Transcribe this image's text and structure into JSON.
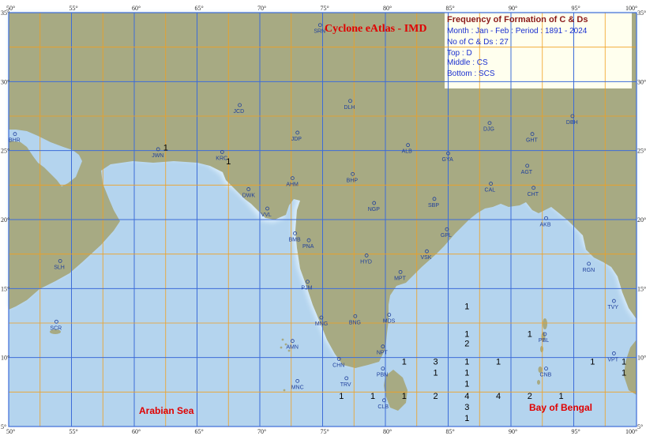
{
  "title": "Cyclone eAtlas - IMD",
  "info_box": {
    "heading": "Frequency of Formation of C & Ds",
    "lines": [
      "Month  :  Jan - Feb : Period  :  1891 - 2024",
      "No of C & Ds  :  27",
      "Top  :  D",
      "Middle  :  CS",
      "Bottom  :  SCS"
    ]
  },
  "seas": {
    "arabian": "Arabian Sea",
    "bengal": "Bay of Bengal"
  },
  "colors": {
    "land": "#a7aa83",
    "sea": "#b4d4ee",
    "coast": "#d9ecfa",
    "grid": "#3c6cd8",
    "grid_minor": "#f0a020"
  },
  "lon_ticks": [
    "50°",
    "55°",
    "60°",
    "65°",
    "70°",
    "75°",
    "80°",
    "85°",
    "90°",
    "95°",
    "100°"
  ],
  "lat_ticks": [
    "35°",
    "30°",
    "25°",
    "20°",
    "15°",
    "10°",
    "5°"
  ],
  "stations": [
    {
      "code": "SRN",
      "lon": 74.8,
      "lat": 34.1
    },
    {
      "code": "BHR",
      "lon": 50.5,
      "lat": 26.2
    },
    {
      "code": "JCD",
      "lon": 68.4,
      "lat": 28.3
    },
    {
      "code": "DLH",
      "lon": 77.2,
      "lat": 28.6
    },
    {
      "code": "JDP",
      "lon": 73.0,
      "lat": 26.3
    },
    {
      "code": "ALB",
      "lon": 81.8,
      "lat": 25.4
    },
    {
      "code": "DJG",
      "lon": 88.3,
      "lat": 27.0
    },
    {
      "code": "DBH",
      "lon": 94.9,
      "lat": 27.5
    },
    {
      "code": "GHT",
      "lon": 91.7,
      "lat": 26.2
    },
    {
      "code": "GYA",
      "lon": 85.0,
      "lat": 24.8
    },
    {
      "code": "AGT",
      "lon": 91.3,
      "lat": 23.9
    },
    {
      "code": "JWN",
      "lon": 61.9,
      "lat": 25.1
    },
    {
      "code": "KRC",
      "lon": 67.0,
      "lat": 24.9
    },
    {
      "code": "AHM",
      "lon": 72.6,
      "lat": 23.0
    },
    {
      "code": "BHP",
      "lon": 77.4,
      "lat": 23.3
    },
    {
      "code": "CAL",
      "lon": 88.4,
      "lat": 22.6
    },
    {
      "code": "DWK",
      "lon": 69.1,
      "lat": 22.2
    },
    {
      "code": "CHT",
      "lon": 91.8,
      "lat": 22.3
    },
    {
      "code": "NGP",
      "lon": 79.1,
      "lat": 21.2
    },
    {
      "code": "SBP",
      "lon": 83.9,
      "lat": 21.5
    },
    {
      "code": "VVL",
      "lon": 70.6,
      "lat": 20.8
    },
    {
      "code": "AKB",
      "lon": 92.8,
      "lat": 20.1
    },
    {
      "code": "GPL",
      "lon": 84.9,
      "lat": 19.3
    },
    {
      "code": "BMB",
      "lon": 72.8,
      "lat": 19.0
    },
    {
      "code": "PNA",
      "lon": 73.9,
      "lat": 18.5
    },
    {
      "code": "HYD",
      "lon": 78.5,
      "lat": 17.4
    },
    {
      "code": "VSK",
      "lon": 83.3,
      "lat": 17.7
    },
    {
      "code": "RGN",
      "lon": 96.2,
      "lat": 16.8
    },
    {
      "code": "SLH",
      "lon": 54.1,
      "lat": 17.0
    },
    {
      "code": "MPT",
      "lon": 81.2,
      "lat": 16.2
    },
    {
      "code": "PJM",
      "lon": 73.8,
      "lat": 15.5
    },
    {
      "code": "TVY",
      "lon": 98.2,
      "lat": 14.1
    },
    {
      "code": "MNG",
      "lon": 74.9,
      "lat": 12.9
    },
    {
      "code": "BNG",
      "lon": 77.6,
      "lat": 13.0
    },
    {
      "code": "MDS",
      "lon": 80.3,
      "lat": 13.1
    },
    {
      "code": "SCR",
      "lon": 53.8,
      "lat": 12.6
    },
    {
      "code": "AMN",
      "lon": 72.6,
      "lat": 11.2
    },
    {
      "code": "PBL",
      "lon": 92.7,
      "lat": 11.7
    },
    {
      "code": "NPT",
      "lon": 79.8,
      "lat": 10.8
    },
    {
      "code": "VPT",
      "lon": 98.2,
      "lat": 10.3
    },
    {
      "code": "CHN",
      "lon": 76.3,
      "lat": 9.9
    },
    {
      "code": "PBN",
      "lon": 79.8,
      "lat": 9.2
    },
    {
      "code": "TRV",
      "lon": 76.9,
      "lat": 8.5
    },
    {
      "code": "CNB",
      "lon": 92.8,
      "lat": 9.2
    },
    {
      "code": "MNC",
      "lon": 73.0,
      "lat": 8.3
    },
    {
      "code": "CLB",
      "lon": 79.9,
      "lat": 6.9
    }
  ],
  "counts": [
    {
      "lon": 62.5,
      "lat": 25.0,
      "value": "1"
    },
    {
      "lon": 67.5,
      "lat": 24.0,
      "value": "1"
    },
    {
      "lon": 86.5,
      "lat": 13.5,
      "value": "1"
    },
    {
      "lon": 86.5,
      "lat": 11.5,
      "value": "1"
    },
    {
      "lon": 86.5,
      "lat": 10.8,
      "value": "2"
    },
    {
      "lon": 91.5,
      "lat": 11.5,
      "value": "1"
    },
    {
      "lon": 81.5,
      "lat": 9.5,
      "value": "1"
    },
    {
      "lon": 84.0,
      "lat": 9.5,
      "value": "3"
    },
    {
      "lon": 84.0,
      "lat": 8.7,
      "value": "1"
    },
    {
      "lon": 86.5,
      "lat": 9.5,
      "value": "1"
    },
    {
      "lon": 86.5,
      "lat": 8.7,
      "value": "1"
    },
    {
      "lon": 86.5,
      "lat": 7.9,
      "value": "1"
    },
    {
      "lon": 89.0,
      "lat": 9.5,
      "value": "1"
    },
    {
      "lon": 96.5,
      "lat": 9.5,
      "value": "1"
    },
    {
      "lon": 99.0,
      "lat": 9.5,
      "value": "1"
    },
    {
      "lon": 99.0,
      "lat": 8.7,
      "value": "1"
    },
    {
      "lon": 76.5,
      "lat": 7.0,
      "value": "1"
    },
    {
      "lon": 79.0,
      "lat": 7.0,
      "value": "1"
    },
    {
      "lon": 81.5,
      "lat": 7.0,
      "value": "1"
    },
    {
      "lon": 84.0,
      "lat": 7.0,
      "value": "2"
    },
    {
      "lon": 86.5,
      "lat": 7.0,
      "value": "4"
    },
    {
      "lon": 86.5,
      "lat": 6.2,
      "value": "3"
    },
    {
      "lon": 86.5,
      "lat": 5.4,
      "value": "1"
    },
    {
      "lon": 89.0,
      "lat": 7.0,
      "value": "4"
    },
    {
      "lon": 91.5,
      "lat": 7.0,
      "value": "2"
    },
    {
      "lon": 94.0,
      "lat": 7.0,
      "value": "1"
    }
  ]
}
